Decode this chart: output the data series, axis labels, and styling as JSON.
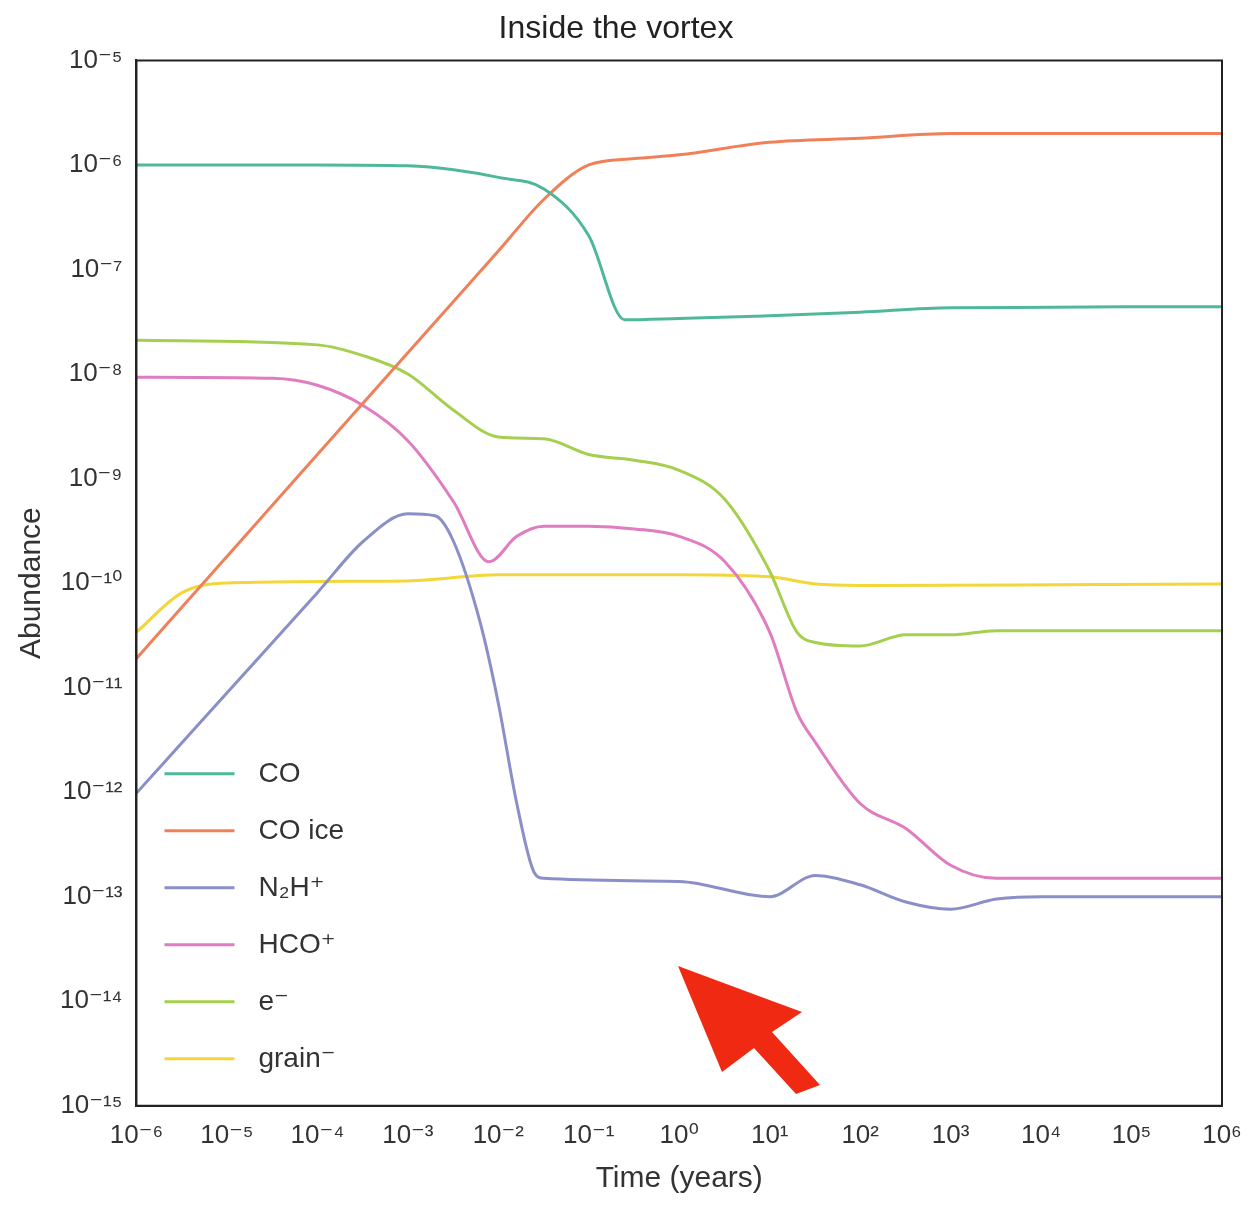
{
  "chart_data": {
    "type": "line",
    "title": "Inside the vortex",
    "xlabel": "Time (years)",
    "ylabel": "Abundance",
    "log": "xy",
    "grid": false,
    "legend": "bottom left",
    "marker": "none",
    "line_style": "solid",
    "xlim": [
      1e-06,
      1000000.0
    ],
    "ylim": [
      1e-15,
      1e-05
    ],
    "xticks": [
      {
        "value": 1e-06,
        "label": "10⁻⁶"
      },
      {
        "value": 1e-05,
        "label": "10⁻⁵"
      },
      {
        "value": 0.0001,
        "label": "10⁻⁴"
      },
      {
        "value": 0.001,
        "label": "10⁻³"
      },
      {
        "value": 0.01,
        "label": "10⁻²"
      },
      {
        "value": 0.1,
        "label": "10⁻¹"
      },
      {
        "value": 1,
        "label": "10⁰"
      },
      {
        "value": 10,
        "label": "10¹"
      },
      {
        "value": 100,
        "label": "10²"
      },
      {
        "value": 1000,
        "label": "10³"
      },
      {
        "value": 10000.0,
        "label": "10⁴"
      },
      {
        "value": 100000.0,
        "label": "10⁵"
      },
      {
        "value": 1000000.0,
        "label": "10⁶"
      }
    ],
    "yticks": [
      {
        "value": 1e-15,
        "label": "10⁻¹⁵"
      },
      {
        "value": 1e-14,
        "label": "10⁻¹⁴"
      },
      {
        "value": 1e-13,
        "label": "10⁻¹³"
      },
      {
        "value": 1e-12,
        "label": "10⁻¹²"
      },
      {
        "value": 1e-11,
        "label": "10⁻¹¹"
      },
      {
        "value": 1e-10,
        "label": "10⁻¹⁰"
      },
      {
        "value": 1e-09,
        "label": "10⁻⁹"
      },
      {
        "value": 1e-08,
        "label": "10⁻⁸"
      },
      {
        "value": 1e-07,
        "label": "10⁻⁷"
      },
      {
        "value": 1e-06,
        "label": "10⁻⁶"
      },
      {
        "value": 1e-05,
        "label": "10⁻⁵"
      }
    ],
    "series": [
      {
        "name": "CO",
        "color": "#4fb89b",
        "x": [
          1e-06,
          0.0001,
          0.001,
          0.0032,
          0.01,
          0.032,
          0.1,
          0.25,
          1,
          10,
          100,
          1000,
          1000000.0
        ],
        "values": [
          1e-06,
          1e-06,
          9.8e-07,
          9e-07,
          7.6e-07,
          5.9e-07,
          2.1e-07,
          3.3e-08,
          3.4e-08,
          3.6e-08,
          3.9e-08,
          4.3e-08,
          4.4e-08
        ]
      },
      {
        "name": "CO ice",
        "color": "#f0805a",
        "x": [
          1e-06,
          1e-05,
          0.0001,
          0.001,
          0.01,
          0.032,
          0.1,
          0.32,
          1,
          10,
          100,
          1000,
          1000000.0
        ],
        "values": [
          1.9e-11,
          1.8e-10,
          1.7e-09,
          1.6e-08,
          1.5e-07,
          4.7e-07,
          1e-06,
          1.15e-06,
          1.25e-06,
          1.65e-06,
          1.8e-06,
          2e-06,
          2e-06
        ]
      },
      {
        "name": "N₂H⁺",
        "color": "#8a8fc8",
        "x": [
          1e-06,
          0.0001,
          0.00032,
          0.001,
          0.002,
          0.0032,
          0.0063,
          0.01,
          0.016,
          0.025,
          0.032,
          1,
          10,
          32,
          100,
          320,
          1000,
          3200,
          10000.0,
          1000000.0
        ],
        "values": [
          9.8e-13,
          8.1e-11,
          2.5e-10,
          4.6e-10,
          4.4e-10,
          2.5e-10,
          4.2e-11,
          7.1e-12,
          7.8e-13,
          1.7e-13,
          1.5e-13,
          1.4e-13,
          1e-13,
          1.6e-13,
          1.3e-13,
          8.9e-14,
          7.6e-14,
          9.5e-14,
          1e-13,
          1e-13
        ]
      },
      {
        "name": "HCO⁺",
        "color": "#e07cc0",
        "x": [
          1e-06,
          3.2e-05,
          0.0001,
          0.00032,
          0.001,
          0.0032,
          0.0079,
          0.016,
          0.032,
          0.1,
          0.32,
          1,
          3.2,
          10,
          20,
          32,
          100,
          320,
          1000,
          3200,
          1000000.0
        ],
        "values": [
          9.3e-09,
          9.1e-09,
          7.8e-09,
          5e-09,
          2.3e-09,
          6e-10,
          1.6e-10,
          2.8e-10,
          3.5e-10,
          3.5e-10,
          3.3e-10,
          2.8e-10,
          1.6e-10,
          3.4e-11,
          5.8e-12,
          3e-12,
          7.8e-13,
          4.5e-13,
          2e-13,
          1.5e-13,
          1.5e-13
        ]
      },
      {
        "name": "e⁻",
        "color": "#a6cf4f",
        "x": [
          1e-06,
          0.0001,
          0.00032,
          0.001,
          0.0032,
          0.01,
          0.032,
          0.1,
          0.32,
          1,
          3.2,
          10,
          20,
          32,
          100,
          320,
          1000,
          3200,
          1000000.0
        ],
        "values": [
          2.1e-08,
          1.9e-08,
          1.5e-08,
          1e-08,
          4.5e-09,
          2.5e-09,
          2.4e-09,
          1.7e-09,
          1.5e-09,
          1.2e-09,
          6.3e-10,
          1.3e-10,
          3.4e-11,
          2.7e-11,
          2.5e-11,
          3.2e-11,
          3.2e-11,
          3.5e-11,
          3.5e-11
        ]
      },
      {
        "name": "grain⁻",
        "color": "#f2d63a",
        "x": [
          1e-06,
          3.2e-06,
          1e-05,
          0.001,
          0.01,
          1,
          10,
          32,
          100,
          1000000.0
        ],
        "values": [
          3.4e-11,
          8.1e-11,
          1e-10,
          1.05e-10,
          1.2e-10,
          1.2e-10,
          1.15e-10,
          9.8e-11,
          9.5e-11,
          9.8e-11
        ]
      }
    ]
  }
}
